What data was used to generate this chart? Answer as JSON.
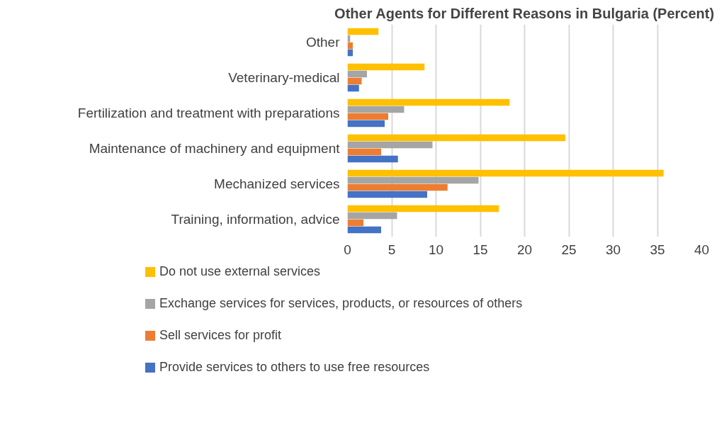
{
  "chart_data": {
    "type": "bar",
    "orientation": "horizontal",
    "title": "Other Agents for Different Reasons in Bulgaria (Percent)",
    "categories": [
      "Other",
      "Veterinary-medical",
      "Fertilization and treatment with preparations",
      "Maintenance of machinery and equipment",
      "Mechanized services",
      "Training, information, advice"
    ],
    "series": [
      {
        "name": "Do not use external services",
        "color": "#ffc000",
        "values": [
          3.5,
          8.7,
          18.3,
          24.6,
          35.7,
          17.1
        ]
      },
      {
        "name": "Exchange services for services, products, or resources of others",
        "color": "#a5a5a5",
        "values": [
          0.3,
          2.2,
          6.4,
          9.6,
          14.8,
          5.6
        ]
      },
      {
        "name": "Sell services for profit",
        "color": "#ed7d31",
        "values": [
          0.6,
          1.6,
          4.6,
          3.8,
          11.3,
          1.8
        ]
      },
      {
        "name": "Provide services to others to use free resources",
        "color": "#4472c4",
        "values": [
          0.6,
          1.3,
          4.2,
          5.7,
          9.0,
          3.8
        ]
      }
    ],
    "xlim": [
      0,
      40
    ],
    "xticks": [
      0,
      5,
      10,
      15,
      20,
      25,
      30,
      35,
      40
    ],
    "grid": "x",
    "legend": "bottom"
  }
}
